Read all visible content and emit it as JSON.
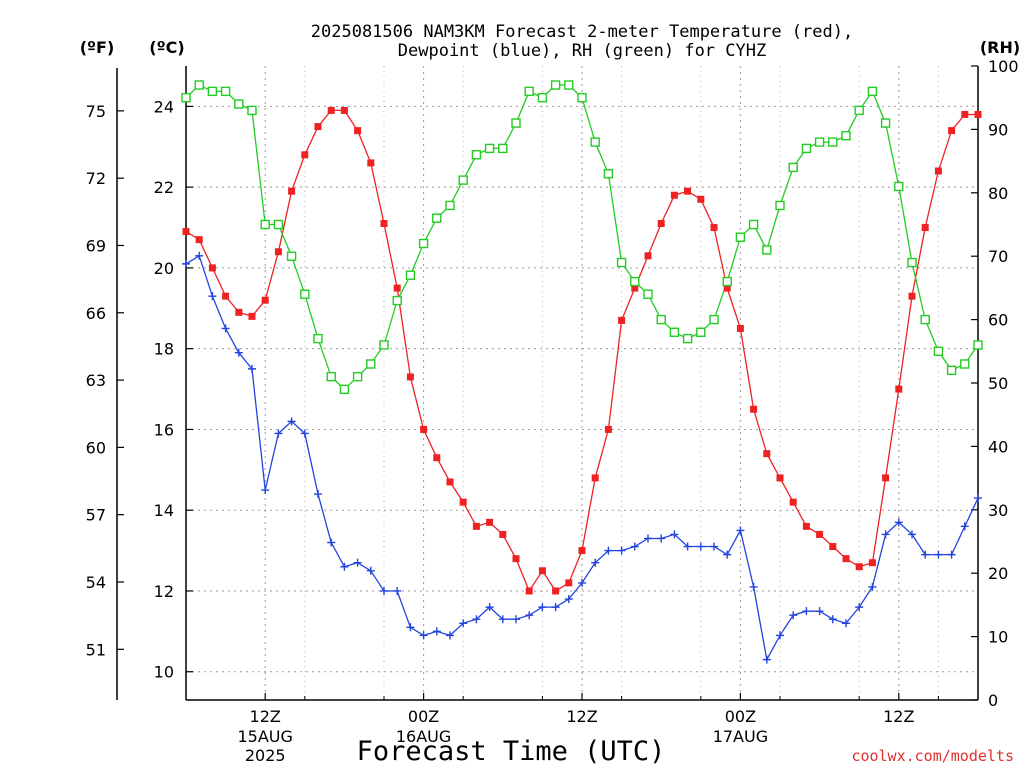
{
  "chart_data": {
    "type": "line",
    "title_line1": "2025081506 NAM3KM Forecast 2-meter Temperature (red),",
    "title_line2": "Dewpoint (blue), RH (green) for CYHZ",
    "xlabel": "Forecast Time (UTC)",
    "unit_left_f": "(ºF)",
    "unit_left_c": "(ºC)",
    "unit_right": "(RH)",
    "watermark": "coolwx.com/modelts",
    "x_units": "hours after 2025-08-15 06Z",
    "xlim": [
      0,
      60
    ],
    "ylim_c": [
      9.3,
      25.0
    ],
    "ylim_rh": [
      0,
      100
    ],
    "yticks_c": [
      10,
      12,
      14,
      16,
      18,
      20,
      22,
      24
    ],
    "yticks_f": [
      51,
      54,
      57,
      60,
      63,
      66,
      69,
      72,
      75
    ],
    "yticks_rh": [
      0,
      10,
      20,
      30,
      40,
      50,
      60,
      70,
      80,
      90,
      100
    ],
    "x_ticks": [
      {
        "x": 6,
        "label": "12Z",
        "sub1": "15AUG",
        "sub2": "2025"
      },
      {
        "x": 18,
        "label": "00Z",
        "sub1": "16AUG",
        "sub2": ""
      },
      {
        "x": 30,
        "label": "12Z",
        "sub1": "",
        "sub2": ""
      },
      {
        "x": 42,
        "label": "00Z",
        "sub1": "17AUG",
        "sub2": ""
      },
      {
        "x": 54,
        "label": "12Z",
        "sub1": "",
        "sub2": ""
      }
    ],
    "x_grid_minor": [
      9,
      15,
      21,
      27,
      33,
      39,
      45,
      51,
      57
    ],
    "grid": true,
    "series": [
      {
        "name": "Temperature (°C)",
        "color": "#ee2222",
        "marker": "filled-square",
        "axis": "C",
        "values": [
          [
            0,
            20.9
          ],
          [
            1,
            20.7
          ],
          [
            2,
            20.0
          ],
          [
            3,
            19.3
          ],
          [
            4,
            18.9
          ],
          [
            5,
            18.8
          ],
          [
            6,
            19.2
          ],
          [
            7,
            20.4
          ],
          [
            8,
            21.9
          ],
          [
            9,
            22.8
          ],
          [
            10,
            23.5
          ],
          [
            11,
            23.9
          ],
          [
            12,
            23.9
          ],
          [
            13,
            23.4
          ],
          [
            14,
            22.6
          ],
          [
            15,
            21.1
          ],
          [
            16,
            19.5
          ],
          [
            17,
            17.3
          ],
          [
            18,
            16.0
          ],
          [
            19,
            15.3
          ],
          [
            20,
            14.7
          ],
          [
            21,
            14.2
          ],
          [
            22,
            13.6
          ],
          [
            23,
            13.7
          ],
          [
            24,
            13.4
          ],
          [
            25,
            12.8
          ],
          [
            26,
            12.0
          ],
          [
            27,
            12.5
          ],
          [
            28,
            12.0
          ],
          [
            29,
            12.2
          ],
          [
            30,
            13.0
          ],
          [
            31,
            14.8
          ],
          [
            32,
            16.0
          ],
          [
            33,
            18.7
          ],
          [
            34,
            19.5
          ],
          [
            35,
            20.3
          ],
          [
            36,
            21.1
          ],
          [
            37,
            21.8
          ],
          [
            38,
            21.9
          ],
          [
            39,
            21.7
          ],
          [
            40,
            21.0
          ],
          [
            41,
            19.5
          ],
          [
            42,
            18.5
          ],
          [
            43,
            16.5
          ],
          [
            44,
            15.4
          ],
          [
            45,
            14.8
          ],
          [
            46,
            14.2
          ],
          [
            47,
            13.6
          ],
          [
            48,
            13.4
          ],
          [
            49,
            13.1
          ],
          [
            50,
            12.8
          ],
          [
            51,
            12.6
          ],
          [
            52,
            12.7
          ],
          [
            53,
            14.8
          ],
          [
            54,
            17.0
          ],
          [
            55,
            19.3
          ],
          [
            56,
            21.0
          ],
          [
            57,
            22.4
          ],
          [
            58,
            23.4
          ],
          [
            59,
            23.8
          ],
          [
            60,
            23.8
          ]
        ]
      },
      {
        "name": "Dewpoint (°C)",
        "color": "#2244dd",
        "marker": "plus",
        "axis": "C",
        "values": [
          [
            0,
            20.1
          ],
          [
            1,
            20.3
          ],
          [
            2,
            19.3
          ],
          [
            3,
            18.5
          ],
          [
            4,
            17.9
          ],
          [
            5,
            17.5
          ],
          [
            6,
            14.5
          ],
          [
            7,
            15.9
          ],
          [
            8,
            16.2
          ],
          [
            9,
            15.9
          ],
          [
            10,
            14.4
          ],
          [
            11,
            13.2
          ],
          [
            12,
            12.6
          ],
          [
            13,
            12.7
          ],
          [
            14,
            12.5
          ],
          [
            15,
            12.0
          ],
          [
            16,
            12.0
          ],
          [
            17,
            11.1
          ],
          [
            18,
            10.9
          ],
          [
            19,
            11.0
          ],
          [
            20,
            10.9
          ],
          [
            21,
            11.2
          ],
          [
            22,
            11.3
          ],
          [
            23,
            11.6
          ],
          [
            24,
            11.3
          ],
          [
            25,
            11.3
          ],
          [
            26,
            11.4
          ],
          [
            27,
            11.6
          ],
          [
            28,
            11.6
          ],
          [
            29,
            11.8
          ],
          [
            30,
            12.2
          ],
          [
            31,
            12.7
          ],
          [
            32,
            13.0
          ],
          [
            33,
            13.0
          ],
          [
            34,
            13.1
          ],
          [
            35,
            13.3
          ],
          [
            36,
            13.3
          ],
          [
            37,
            13.4
          ],
          [
            38,
            13.1
          ],
          [
            39,
            13.1
          ],
          [
            40,
            13.1
          ],
          [
            41,
            12.9
          ],
          [
            42,
            13.5
          ],
          [
            43,
            12.1
          ],
          [
            44,
            10.3
          ],
          [
            45,
            10.9
          ],
          [
            46,
            11.4
          ],
          [
            47,
            11.5
          ],
          [
            48,
            11.5
          ],
          [
            49,
            11.3
          ],
          [
            50,
            11.2
          ],
          [
            51,
            11.6
          ],
          [
            52,
            12.1
          ],
          [
            53,
            13.4
          ],
          [
            54,
            13.7
          ],
          [
            55,
            13.4
          ],
          [
            56,
            12.9
          ],
          [
            57,
            12.9
          ],
          [
            58,
            12.9
          ],
          [
            59,
            13.6
          ],
          [
            60,
            14.3
          ]
        ]
      },
      {
        "name": "RH (%)",
        "color": "#22cc22",
        "marker": "open-square",
        "axis": "RH",
        "values": [
          [
            0,
            95
          ],
          [
            1,
            97
          ],
          [
            2,
            96
          ],
          [
            3,
            96
          ],
          [
            4,
            94
          ],
          [
            5,
            93
          ],
          [
            6,
            75
          ],
          [
            7,
            75
          ],
          [
            8,
            70
          ],
          [
            9,
            64
          ],
          [
            10,
            57
          ],
          [
            11,
            51
          ],
          [
            12,
            49
          ],
          [
            13,
            51
          ],
          [
            14,
            53
          ],
          [
            15,
            56
          ],
          [
            16,
            63
          ],
          [
            17,
            67
          ],
          [
            18,
            72
          ],
          [
            19,
            76
          ],
          [
            20,
            78
          ],
          [
            21,
            82
          ],
          [
            22,
            86
          ],
          [
            23,
            87
          ],
          [
            24,
            87
          ],
          [
            25,
            91
          ],
          [
            26,
            96
          ],
          [
            27,
            95
          ],
          [
            28,
            97
          ],
          [
            29,
            97
          ],
          [
            30,
            95
          ],
          [
            31,
            88
          ],
          [
            32,
            83
          ],
          [
            33,
            69
          ],
          [
            34,
            66
          ],
          [
            35,
            64
          ],
          [
            36,
            60
          ],
          [
            37,
            58
          ],
          [
            38,
            57
          ],
          [
            39,
            58
          ],
          [
            40,
            60
          ],
          [
            41,
            66
          ],
          [
            42,
            73
          ],
          [
            43,
            75
          ],
          [
            44,
            71
          ],
          [
            45,
            78
          ],
          [
            46,
            84
          ],
          [
            47,
            87
          ],
          [
            48,
            88
          ],
          [
            49,
            88
          ],
          [
            50,
            89
          ],
          [
            51,
            93
          ],
          [
            52,
            96
          ],
          [
            53,
            91
          ],
          [
            54,
            81
          ],
          [
            55,
            69
          ],
          [
            56,
            60
          ],
          [
            57,
            55
          ],
          [
            58,
            52
          ],
          [
            59,
            53
          ],
          [
            60,
            56
          ]
        ]
      }
    ]
  }
}
